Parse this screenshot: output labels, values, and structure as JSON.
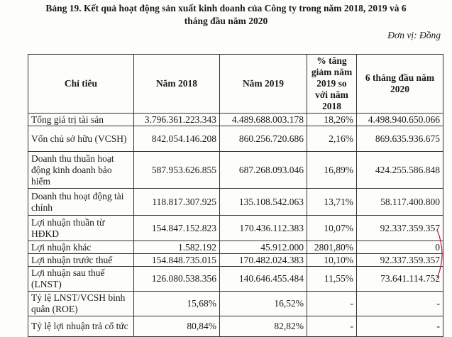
{
  "title_line1": "Bảng 19. Kết quả hoạt động sản xuất kinh doanh của Công ty trong năm 2018, 2019 và 6",
  "title_line2": "tháng đầu năm 2020",
  "unit": "Đơn vị: Đồng",
  "headers": [
    "Chỉ tiêu",
    "Năm 2018",
    "Năm 2019",
    "% tăng giảm năm 2019 so với năm 2018",
    "6 tháng đầu năm 2020"
  ],
  "rows": [
    {
      "label": "Tổng giá trị tài sản",
      "y2018": "3.796.361.223.343",
      "y2019": "4.489.688.003.178",
      "change": "18,26%",
      "h1_2020": "4.498.940.650.066"
    },
    {
      "label": "Vốn chủ sở hữu (VCSH)",
      "y2018": "842.054.146.208",
      "y2019": "860.256.720.686",
      "change": "2,16%",
      "h1_2020": "869.635.936.675"
    },
    {
      "label": "Doanh thu thuần hoạt động kinh doanh bảo hiểm",
      "y2018": "587.953.626.855",
      "y2019": "687.268.093.046",
      "change": "16,89%",
      "h1_2020": "424.255.586.848"
    },
    {
      "label": "Doanh thu hoạt động tài chính",
      "y2018": "118.817.307.925",
      "y2019": "135.108.542.063",
      "change": "13,71%",
      "h1_2020": "58.117.400.800"
    },
    {
      "label": "Lợi nhuận thuần từ HĐKD",
      "y2018": "154.847.152.823",
      "y2019": "170.436.112.383",
      "change": "10,07%",
      "h1_2020": "92.337.359.357"
    },
    {
      "label": "Lợi nhuận khác",
      "y2018": "1.582.192",
      "y2019": "45.912.000",
      "change": "2801,80%",
      "h1_2020": "0"
    },
    {
      "label": "Lợi nhuận trước thuế",
      "y2018": "154.848.735.015",
      "y2019": "170.482.024.383",
      "change": "10,10%",
      "h1_2020": "92.337.359.357"
    },
    {
      "label": "Lợi nhuận sau thuế (LNST)",
      "y2018": "126.080.538.356",
      "y2019": "140.646.455.484",
      "change": "11,55%",
      "h1_2020": "73.641.114.752"
    },
    {
      "label": "Tỷ lệ LNST/VCSH bình quân (ROE)",
      "y2018": "15,68%",
      "y2019": "16,52%",
      "change": "-",
      "h1_2020": "-"
    },
    {
      "label": "Tỷ lệ lợi nhuận trả cổ tức",
      "y2018": "80,84%",
      "y2019": "82,82%",
      "change": "-",
      "h1_2020": "-"
    }
  ]
}
